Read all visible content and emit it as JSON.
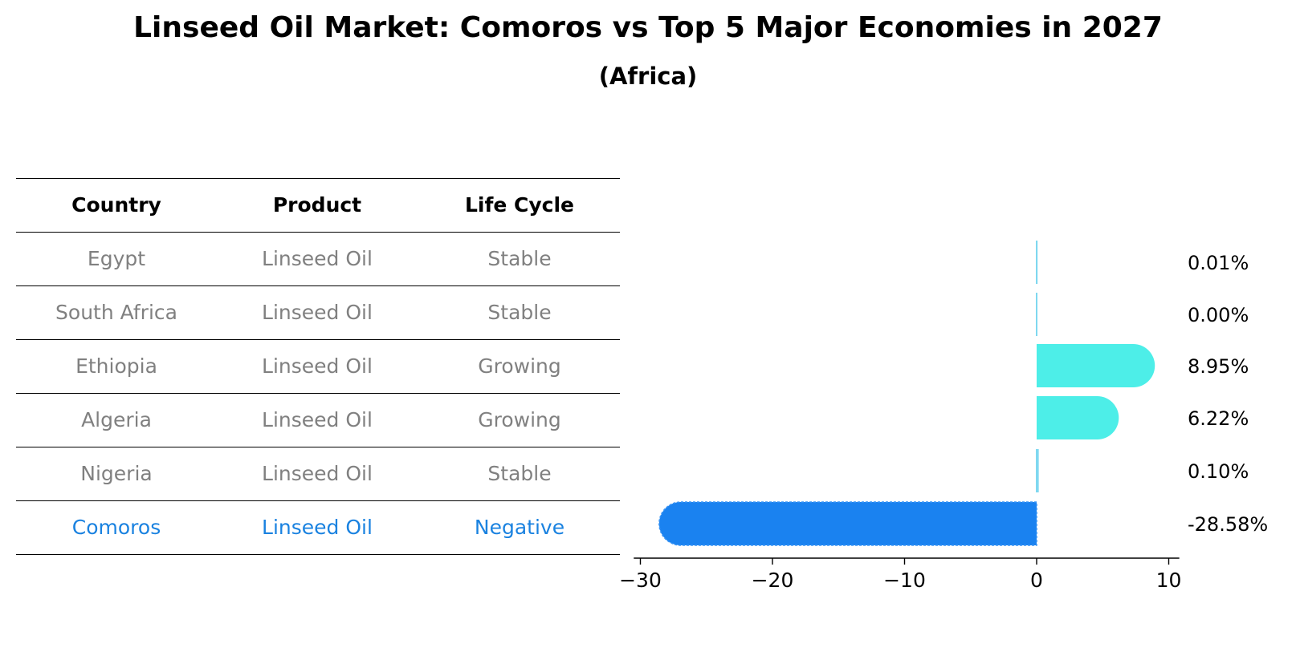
{
  "title": "Linseed Oil Market: Comoros vs Top 5 Major Economies in 2027",
  "subtitle": "(Africa)",
  "table": {
    "headers": [
      "Country",
      "Product",
      "Life Cycle"
    ],
    "rows": [
      [
        "Egypt",
        "Linseed Oil",
        "Stable"
      ],
      [
        "South Africa",
        "Linseed Oil",
        "Stable"
      ],
      [
        "Ethiopia",
        "Linseed Oil",
        "Growing"
      ],
      [
        "Algeria",
        "Linseed Oil",
        "Growing"
      ],
      [
        "Nigeria",
        "Linseed Oil",
        "Stable"
      ],
      [
        "Comoros",
        "Linseed Oil",
        "Negative"
      ]
    ]
  },
  "colors": {
    "positive": "#4deee8",
    "thin": "#7fd8f0",
    "negative": "#1a82f0",
    "text_gray": "#808080",
    "highlight": "#1a82e0"
  },
  "chart_data": {
    "type": "bar",
    "orientation": "horizontal",
    "categories": [
      "Egypt",
      "South Africa",
      "Ethiopia",
      "Algeria",
      "Nigeria",
      "Comoros"
    ],
    "values": [
      0.01,
      0.0,
      8.95,
      6.22,
      0.1,
      -28.58
    ],
    "labels": [
      "0.01%",
      "0.00%",
      "8.95%",
      "6.22%",
      "0.10%",
      "-28.58%"
    ],
    "xlim": [
      -30.5,
      10.8
    ],
    "xticks": [
      -30,
      -20,
      -10,
      0,
      10
    ],
    "xtick_labels": [
      "−30",
      "−20",
      "−10",
      "0",
      "10"
    ],
    "title": "",
    "xlabel": "",
    "ylabel": ""
  }
}
